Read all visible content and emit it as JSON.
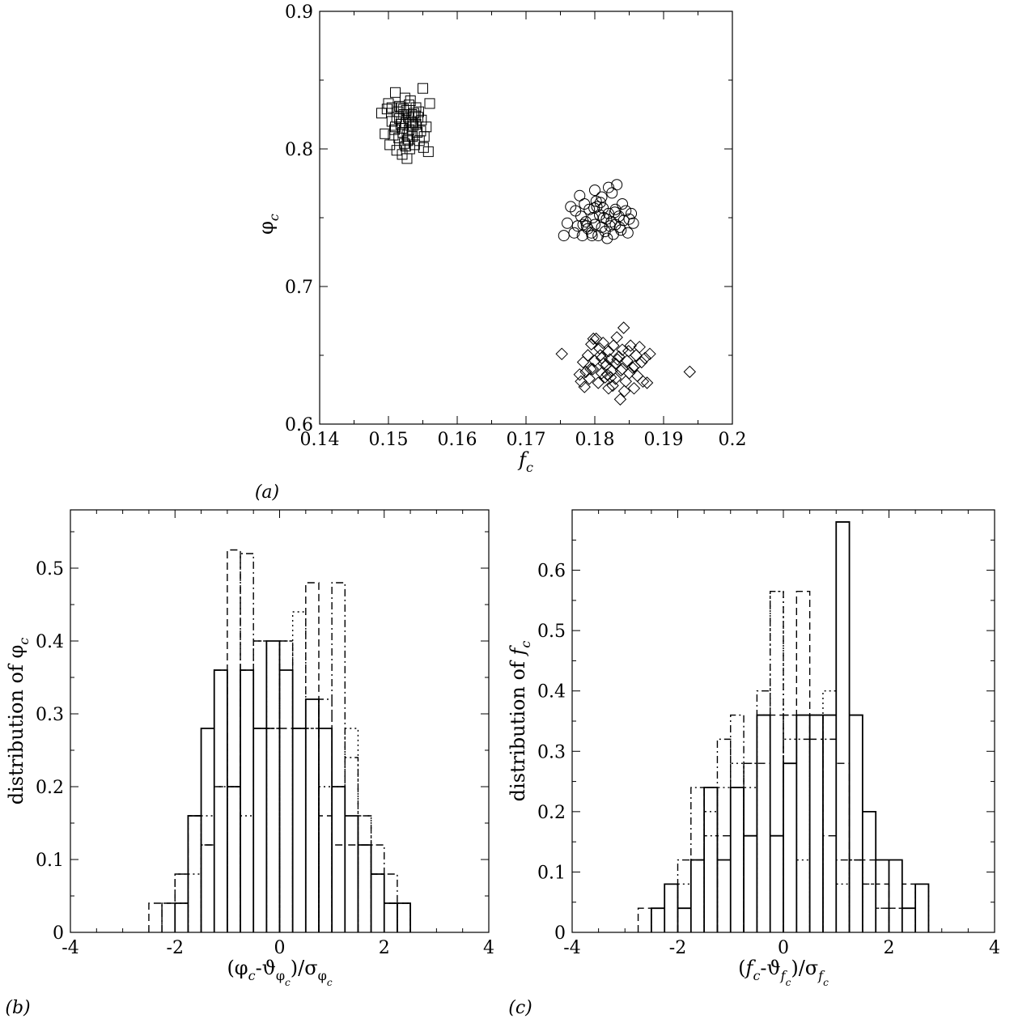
{
  "chart_data": [
    {
      "panel": "(a)",
      "type": "scatter",
      "xlabel": "f_c",
      "ylabel": "φ_c",
      "xlim": [
        0.14,
        0.2
      ],
      "ylim": [
        0.6,
        0.9
      ],
      "xticks": [
        "0.14",
        "0.15",
        "0.16",
        "0.17",
        "0.18",
        "0.19",
        "0.2"
      ],
      "yticks": [
        "0.6",
        "0.7",
        "0.8",
        "0.9"
      ],
      "series": [
        {
          "marker": "square",
          "x": [
            0.149,
            0.1495,
            0.15,
            0.1502,
            0.1505,
            0.1507,
            0.151,
            0.151,
            0.1512,
            0.1514,
            0.1515,
            0.1516,
            0.1518,
            0.152,
            0.152,
            0.1521,
            0.1522,
            0.1523,
            0.1524,
            0.1525,
            0.1526,
            0.1527,
            0.1528,
            0.1529,
            0.153,
            0.153,
            0.1531,
            0.1532,
            0.1534,
            0.1535,
            0.1536,
            0.1538,
            0.154,
            0.154,
            0.1542,
            0.1544,
            0.1545,
            0.1548,
            0.155,
            0.1552,
            0.1555,
            0.1558,
            0.156,
            0.1505,
            0.1518,
            0.1525,
            0.1532,
            0.1547,
            0.1512,
            0.1527,
            0.1537,
            0.1498,
            0.1543,
            0.1551,
            0.1509,
            0.1522,
            0.1535,
            0.1529,
            0.1516,
            0.1539
          ],
          "y": [
            0.826,
            0.811,
            0.833,
            0.803,
            0.82,
            0.81,
            0.841,
            0.816,
            0.799,
            0.827,
            0.808,
            0.822,
            0.83,
            0.796,
            0.815,
            0.812,
            0.825,
            0.804,
            0.837,
            0.819,
            0.828,
            0.81,
            0.806,
            0.823,
            0.814,
            0.832,
            0.8,
            0.82,
            0.825,
            0.809,
            0.817,
            0.803,
            0.83,
            0.818,
            0.812,
            0.827,
            0.806,
            0.821,
            0.844,
            0.809,
            0.816,
            0.798,
            0.833,
            0.83,
            0.818,
            0.802,
            0.835,
            0.813,
            0.823,
            0.793,
            0.826,
            0.829,
            0.823,
            0.801,
            0.814,
            0.829,
            0.819,
            0.807,
            0.831,
            0.824
          ]
        },
        {
          "marker": "circle",
          "x": [
            0.1755,
            0.176,
            0.1765,
            0.177,
            0.1772,
            0.1775,
            0.1778,
            0.178,
            0.1782,
            0.1785,
            0.1787,
            0.179,
            0.1792,
            0.1795,
            0.1797,
            0.18,
            0.18,
            0.1802,
            0.1805,
            0.1807,
            0.181,
            0.181,
            0.1812,
            0.1815,
            0.1817,
            0.182,
            0.182,
            0.1822,
            0.1825,
            0.1827,
            0.183,
            0.183,
            0.1832,
            0.1835,
            0.1838,
            0.184,
            0.1842,
            0.1845,
            0.1848,
            0.185,
            0.1853,
            0.1856,
            0.1788,
            0.1803,
            0.1818,
            0.1824,
            0.1808,
            0.1796,
            0.1829,
            0.1813,
            0.1783,
            0.1836,
            0.1799
          ],
          "y": [
            0.737,
            0.746,
            0.758,
            0.739,
            0.755,
            0.744,
            0.766,
            0.751,
            0.737,
            0.76,
            0.747,
            0.742,
            0.756,
            0.739,
            0.75,
            0.77,
            0.745,
            0.762,
            0.737,
            0.752,
            0.743,
            0.765,
            0.757,
            0.74,
            0.749,
            0.772,
            0.753,
            0.744,
            0.768,
            0.738,
            0.756,
            0.745,
            0.774,
            0.751,
            0.741,
            0.76,
            0.748,
            0.755,
            0.739,
            0.749,
            0.753,
            0.746,
            0.744,
            0.758,
            0.735,
            0.747,
            0.761,
            0.737,
            0.754,
            0.75,
            0.745,
            0.743,
            0.757
          ]
        },
        {
          "marker": "diamond",
          "x": [
            0.1752,
            0.1778,
            0.178,
            0.1783,
            0.1785,
            0.1787,
            0.179,
            0.1792,
            0.1795,
            0.1797,
            0.18,
            0.1802,
            0.1805,
            0.1807,
            0.181,
            0.181,
            0.1812,
            0.1815,
            0.1817,
            0.182,
            0.182,
            0.1822,
            0.1825,
            0.1827,
            0.183,
            0.183,
            0.1832,
            0.1835,
            0.1837,
            0.184,
            0.184,
            0.1842,
            0.1845,
            0.1847,
            0.185,
            0.1852,
            0.1855,
            0.1857,
            0.186,
            0.1862,
            0.1865,
            0.1868,
            0.187,
            0.1873,
            0.1876,
            0.188,
            0.1938,
            0.1798,
            0.1813,
            0.1826,
            0.1838,
            0.1849,
            0.1808,
            0.1823,
            0.1833,
            0.1843,
            0.1858,
            0.1818,
            0.1794
          ],
          "y": [
            0.651,
            0.636,
            0.631,
            0.645,
            0.627,
            0.638,
            0.65,
            0.633,
            0.658,
            0.64,
            0.646,
            0.662,
            0.63,
            0.655,
            0.637,
            0.648,
            0.659,
            0.634,
            0.643,
            0.653,
            0.626,
            0.647,
            0.639,
            0.657,
            0.644,
            0.633,
            0.663,
            0.649,
            0.618,
            0.64,
            0.654,
            0.67,
            0.631,
            0.646,
            0.637,
            0.657,
            0.641,
            0.626,
            0.65,
            0.635,
            0.656,
            0.645,
            0.631,
            0.648,
            0.63,
            0.651,
            0.638,
            0.662,
            0.644,
            0.628,
            0.639,
            0.653,
            0.65,
            0.634,
            0.647,
            0.624,
            0.642,
            0.636,
            0.64
          ]
        }
      ]
    },
    {
      "panel": "(b)",
      "type": "bar",
      "subtype": "histogram",
      "xlabel": "(φ_c-θ_φc)/σ_φc",
      "ylabel": "distribution of φ_c",
      "xlim": [
        -4,
        4
      ],
      "ylim": [
        0,
        0.58
      ],
      "xticks": [
        "-4",
        "-2",
        "0",
        "2",
        "4"
      ],
      "yticks": [
        "0",
        "0.1",
        "0.2",
        "0.3",
        "0.4",
        "0.5"
      ],
      "bin_width": 0.25,
      "series": [
        {
          "style": "solid",
          "x_start": -2.0,
          "values": [
            0.04,
            0.16,
            0.28,
            0.36,
            0.2,
            0.36,
            0.28,
            0.4,
            0.36,
            0.28,
            0.32,
            0.28,
            0.2,
            0.16,
            0.12,
            0.08,
            0.04,
            0.04
          ]
        },
        {
          "style": "dashed",
          "x_start": -2.5,
          "values": [
            0.04,
            0.04,
            0.08,
            0.16,
            0.12,
            0.2,
            0.525,
            0.36,
            0.28,
            0.28,
            0.28,
            0.28,
            0.48,
            0.16,
            0.12,
            0.12,
            0.12,
            0.08,
            0.04,
            0.04
          ]
        },
        {
          "style": "dotted",
          "x_start": -2.0,
          "values": [
            0.04,
            0.08,
            0.16,
            0.2,
            0.2,
            0.16,
            0.4,
            0.28,
            0.4,
            0.44,
            0.28,
            0.2,
            0.2,
            0.28,
            0.16,
            0.08,
            0.04,
            0.04
          ]
        },
        {
          "style": "dash-dot",
          "x_start": -2.25,
          "values": [
            0.04,
            0.08,
            0.16,
            0.12,
            0.36,
            0.2,
            0.52,
            0.4,
            0.28,
            0.4,
            0.28,
            0.28,
            0.32,
            0.48,
            0.24,
            0.16,
            0.12,
            0.08
          ]
        }
      ]
    },
    {
      "panel": "(c)",
      "type": "bar",
      "subtype": "histogram",
      "xlabel": "(f_c-θ_fc)/σ_fc",
      "ylabel": "distribution of f_c",
      "xlim": [
        -4,
        4
      ],
      "ylim": [
        0,
        0.7
      ],
      "xticks": [
        "-4",
        "-2",
        "0",
        "2",
        "4"
      ],
      "yticks": [
        "0",
        "0.1",
        "0.2",
        "0.3",
        "0.4",
        "0.5",
        "0.6"
      ],
      "bin_width": 0.25,
      "series": [
        {
          "style": "solid",
          "x_start": -2.5,
          "values": [
            0.04,
            0.08,
            0.04,
            0.12,
            0.24,
            0.12,
            0.24,
            0.16,
            0.36,
            0.16,
            0.28,
            0.36,
            0.36,
            0.36,
            0.68,
            0.36,
            0.2,
            0.12,
            0.12,
            0.04,
            0.08
          ]
        },
        {
          "style": "dashed",
          "x_start": -2.75,
          "values": [
            0.04,
            0.04,
            0.08,
            0.04,
            0.12,
            0.24,
            0.16,
            0.24,
            0.28,
            0.28,
            0.36,
            0.36,
            0.565,
            0.32,
            0.16,
            0.28,
            0.12,
            0.12,
            0.08,
            0.04,
            0.08
          ]
        },
        {
          "style": "dotted",
          "x_start": -2.0,
          "values": [
            0.08,
            0.12,
            0.2,
            0.24,
            0.28,
            0.24,
            0.36,
            0.565,
            0.32,
            0.12,
            0.36,
            0.4,
            0.08,
            0.12,
            0.08,
            0.04,
            0.04,
            0.04,
            0.08
          ]
        },
        {
          "style": "dash-dot",
          "x_start": -2.0,
          "values": [
            0.12,
            0.24,
            0.16,
            0.32,
            0.36,
            0.28,
            0.4,
            0.565,
            0.36,
            0.32,
            0.36,
            0.32,
            0.12,
            0.12,
            0.08,
            0.04
          ]
        }
      ]
    }
  ]
}
